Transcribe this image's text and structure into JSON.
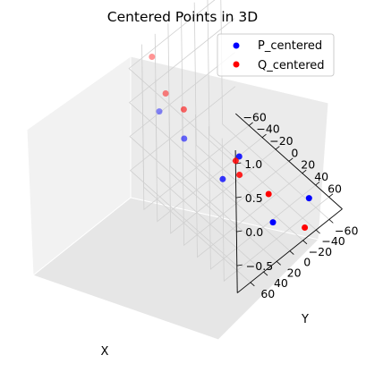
{
  "chart_data": {
    "type": "scatter",
    "projection": "3d",
    "title": "Centered Points in 3D",
    "xlabel": "X",
    "ylabel": "Y",
    "zlabel": "",
    "x_ticks": [
      "−60",
      "−40",
      "−20",
      "0",
      "20",
      "40",
      "60"
    ],
    "y_ticks": [
      "−60",
      "−40",
      "−20",
      "0",
      "20",
      "40",
      "60"
    ],
    "z_ticks": [
      "−0.5",
      "0.0",
      "0.5",
      "1.0"
    ],
    "legend_position": "top-right",
    "grid": true,
    "series": [
      {
        "name": "P_centered",
        "color": "#0000ff",
        "points": [
          {
            "x": -73,
            "y": 5,
            "z": -0.55
          },
          {
            "x": -60,
            "y": 55,
            "z": 0.35
          },
          {
            "x": 50,
            "y": -5,
            "z": -0.78
          },
          {
            "x": -20,
            "y": -25,
            "z": -0.58
          },
          {
            "x": 70,
            "y": -40,
            "z": -0.52
          },
          {
            "x": 40,
            "y": 60,
            "z": 0.27
          }
        ]
      },
      {
        "name": "Q_centered",
        "color": "#ff0000",
        "points": [
          {
            "x": -73,
            "y": 5,
            "z": -0.12
          },
          {
            "x": -65,
            "y": 60,
            "z": 1.15
          },
          {
            "x": -55,
            "y": 50,
            "z": 0.62
          },
          {
            "x": 42,
            "y": -7,
            "z": -0.45
          },
          {
            "x": -20,
            "y": -25,
            "z": -0.85
          },
          {
            "x": 73,
            "y": -30,
            "z": -0.85
          },
          {
            "x": 50,
            "y": 50,
            "z": 0.55
          }
        ]
      }
    ]
  }
}
